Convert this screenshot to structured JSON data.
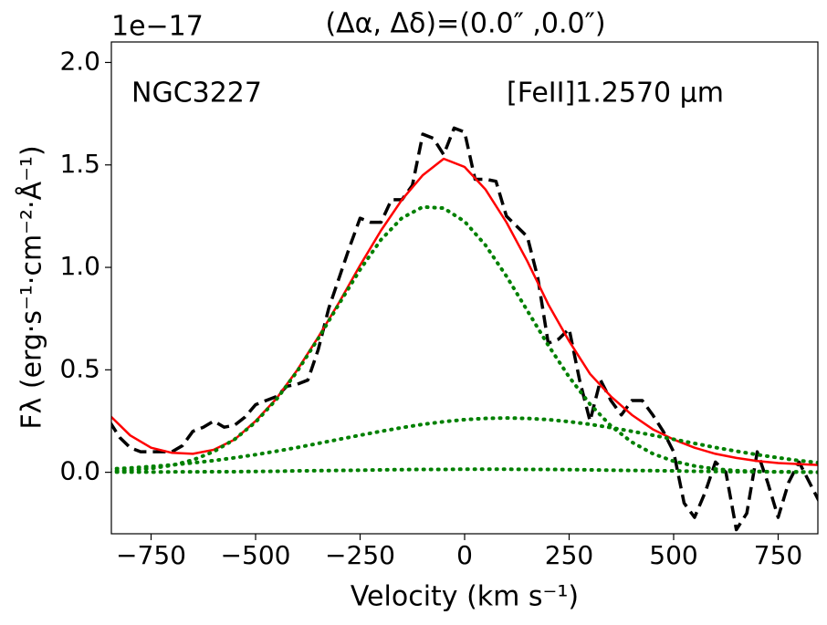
{
  "chart_data": {
    "type": "line",
    "title": "(Δα, Δδ)=(0.0″ ,0.0″)",
    "offset_text": "1e−17",
    "annotations": [
      "NGC3227",
      "[FeII]1.2570 μm"
    ],
    "xlabel": "Velocity (km s⁻¹)",
    "ylabel": "Fλ (erg·s⁻¹·cm⁻²·Å⁻¹)",
    "xlim": [
      -845,
      845
    ],
    "ylim": [
      -0.3,
      2.1
    ],
    "xticks": [
      {
        "value": -750,
        "label": "−750"
      },
      {
        "value": -500,
        "label": "−500"
      },
      {
        "value": -250,
        "label": "−250"
      },
      0,
      250,
      500,
      750
    ],
    "yticks": [
      {
        "value": 0,
        "label": "0.0"
      },
      0.5,
      {
        "value": 1,
        "label": "1.0"
      },
      1.5,
      {
        "value": 2,
        "label": "2.0"
      }
    ],
    "series": [
      {
        "color": "#000000",
        "dash": "dashed",
        "x": [
          -850,
          -825,
          -800,
          -775,
          -750,
          -725,
          -700,
          -675,
          -650,
          -625,
          -600,
          -575,
          -550,
          -525,
          -500,
          -475,
          -450,
          -425,
          -400,
          -375,
          -350,
          -325,
          -300,
          -275,
          -250,
          -225,
          -200,
          -175,
          -150,
          -125,
          -100,
          -75,
          -50,
          -25,
          0,
          25,
          50,
          75,
          100,
          125,
          150,
          175,
          200,
          225,
          250,
          275,
          300,
          325,
          350,
          375,
          400,
          425,
          450,
          475,
          500,
          525,
          550,
          575,
          600,
          625,
          650,
          675,
          700,
          725,
          750,
          775,
          800,
          825,
          850
        ],
        "values": [
          0.25,
          0.17,
          0.12,
          0.1,
          0.1,
          0.1,
          0.1,
          0.13,
          0.2,
          0.22,
          0.25,
          0.22,
          0.23,
          0.27,
          0.33,
          0.35,
          0.37,
          0.42,
          0.43,
          0.45,
          0.6,
          0.8,
          0.95,
          1.1,
          1.24,
          1.22,
          1.22,
          1.33,
          1.33,
          1.4,
          1.65,
          1.63,
          1.55,
          1.68,
          1.66,
          1.43,
          1.43,
          1.42,
          1.25,
          1.2,
          1.15,
          0.95,
          0.63,
          0.65,
          0.7,
          0.45,
          0.25,
          0.45,
          0.35,
          0.28,
          0.35,
          0.35,
          0.28,
          0.2,
          0.1,
          -0.15,
          -0.22,
          -0.1,
          0.05,
          0.0,
          -0.28,
          -0.2,
          0.1,
          -0.05,
          -0.22,
          -0.05,
          0.05,
          -0.05,
          -0.15
        ]
      },
      {
        "color": "#ff0000",
        "dash": "solid",
        "x": [
          -850,
          -800,
          -750,
          -700,
          -650,
          -600,
          -550,
          -500,
          -450,
          -400,
          -350,
          -300,
          -250,
          -200,
          -150,
          -100,
          -50,
          0,
          50,
          100,
          150,
          200,
          250,
          300,
          350,
          400,
          450,
          500,
          550,
          600,
          650,
          700,
          750,
          800,
          850
        ],
        "values": [
          0.28,
          0.18,
          0.12,
          0.095,
          0.09,
          0.11,
          0.16,
          0.25,
          0.36,
          0.5,
          0.66,
          0.83,
          1.01,
          1.18,
          1.33,
          1.45,
          1.53,
          1.49,
          1.38,
          1.22,
          1.03,
          0.82,
          0.64,
          0.48,
          0.37,
          0.28,
          0.21,
          0.16,
          0.12,
          0.09,
          0.07,
          0.055,
          0.045,
          0.04,
          0.035
        ]
      },
      {
        "color": "#008000",
        "dash": "dotted",
        "x": [
          -850,
          -800,
          -750,
          -700,
          -650,
          -600,
          -550,
          -500,
          -450,
          -400,
          -350,
          -300,
          -250,
          -200,
          -150,
          -100,
          -50,
          0,
          50,
          100,
          150,
          200,
          250,
          300,
          350,
          400,
          450,
          500,
          550,
          600,
          650,
          700,
          750,
          800,
          850
        ],
        "values": [
          0.005,
          0.01,
          0.019,
          0.034,
          0.06,
          0.101,
          0.161,
          0.245,
          0.356,
          0.494,
          0.653,
          0.823,
          0.989,
          1.135,
          1.241,
          1.295,
          1.289,
          1.224,
          1.108,
          0.957,
          0.789,
          0.62,
          0.465,
          0.332,
          0.226,
          0.147,
          0.091,
          0.054,
          0.031,
          0.016,
          0.008,
          0.004,
          0.002,
          0.001,
          0.0
        ]
      },
      {
        "color": "#008000",
        "dash": "dotted",
        "x": [
          -850,
          -800,
          -750,
          -700,
          -650,
          -600,
          -550,
          -500,
          -450,
          -400,
          -350,
          -300,
          -250,
          -200,
          -150,
          -100,
          -50,
          0,
          50,
          100,
          150,
          200,
          250,
          300,
          350,
          400,
          450,
          500,
          550,
          600,
          650,
          700,
          750,
          800,
          850
        ],
        "values": [
          0.016,
          0.021,
          0.028,
          0.036,
          0.046,
          0.057,
          0.071,
          0.086,
          0.103,
          0.121,
          0.141,
          0.161,
          0.181,
          0.2,
          0.218,
          0.234,
          0.247,
          0.257,
          0.263,
          0.265,
          0.263,
          0.257,
          0.247,
          0.234,
          0.218,
          0.2,
          0.181,
          0.161,
          0.141,
          0.121,
          0.103,
          0.086,
          0.071,
          0.057,
          0.046
        ]
      },
      {
        "color": "#008000",
        "dash": "dotted",
        "x": [
          -850,
          -800,
          -750,
          -700,
          -650,
          -600,
          -550,
          -500,
          -450,
          -400,
          -350,
          -300,
          -250,
          -200,
          -150,
          -100,
          -50,
          0,
          50,
          100,
          150,
          200,
          250,
          300,
          350,
          400,
          450,
          500,
          550,
          600,
          650,
          700,
          750,
          800,
          850
        ],
        "values": [
          0.001,
          0.001,
          0.001,
          0.002,
          0.002,
          0.003,
          0.003,
          0.004,
          0.005,
          0.007,
          0.008,
          0.009,
          0.01,
          0.012,
          0.013,
          0.014,
          0.014,
          0.015,
          0.015,
          0.015,
          0.014,
          0.014,
          0.013,
          0.012,
          0.01,
          0.009,
          0.008,
          0.007,
          0.005,
          0.004,
          0.003,
          0.003,
          0.002,
          0.002,
          0.001
        ]
      }
    ]
  }
}
